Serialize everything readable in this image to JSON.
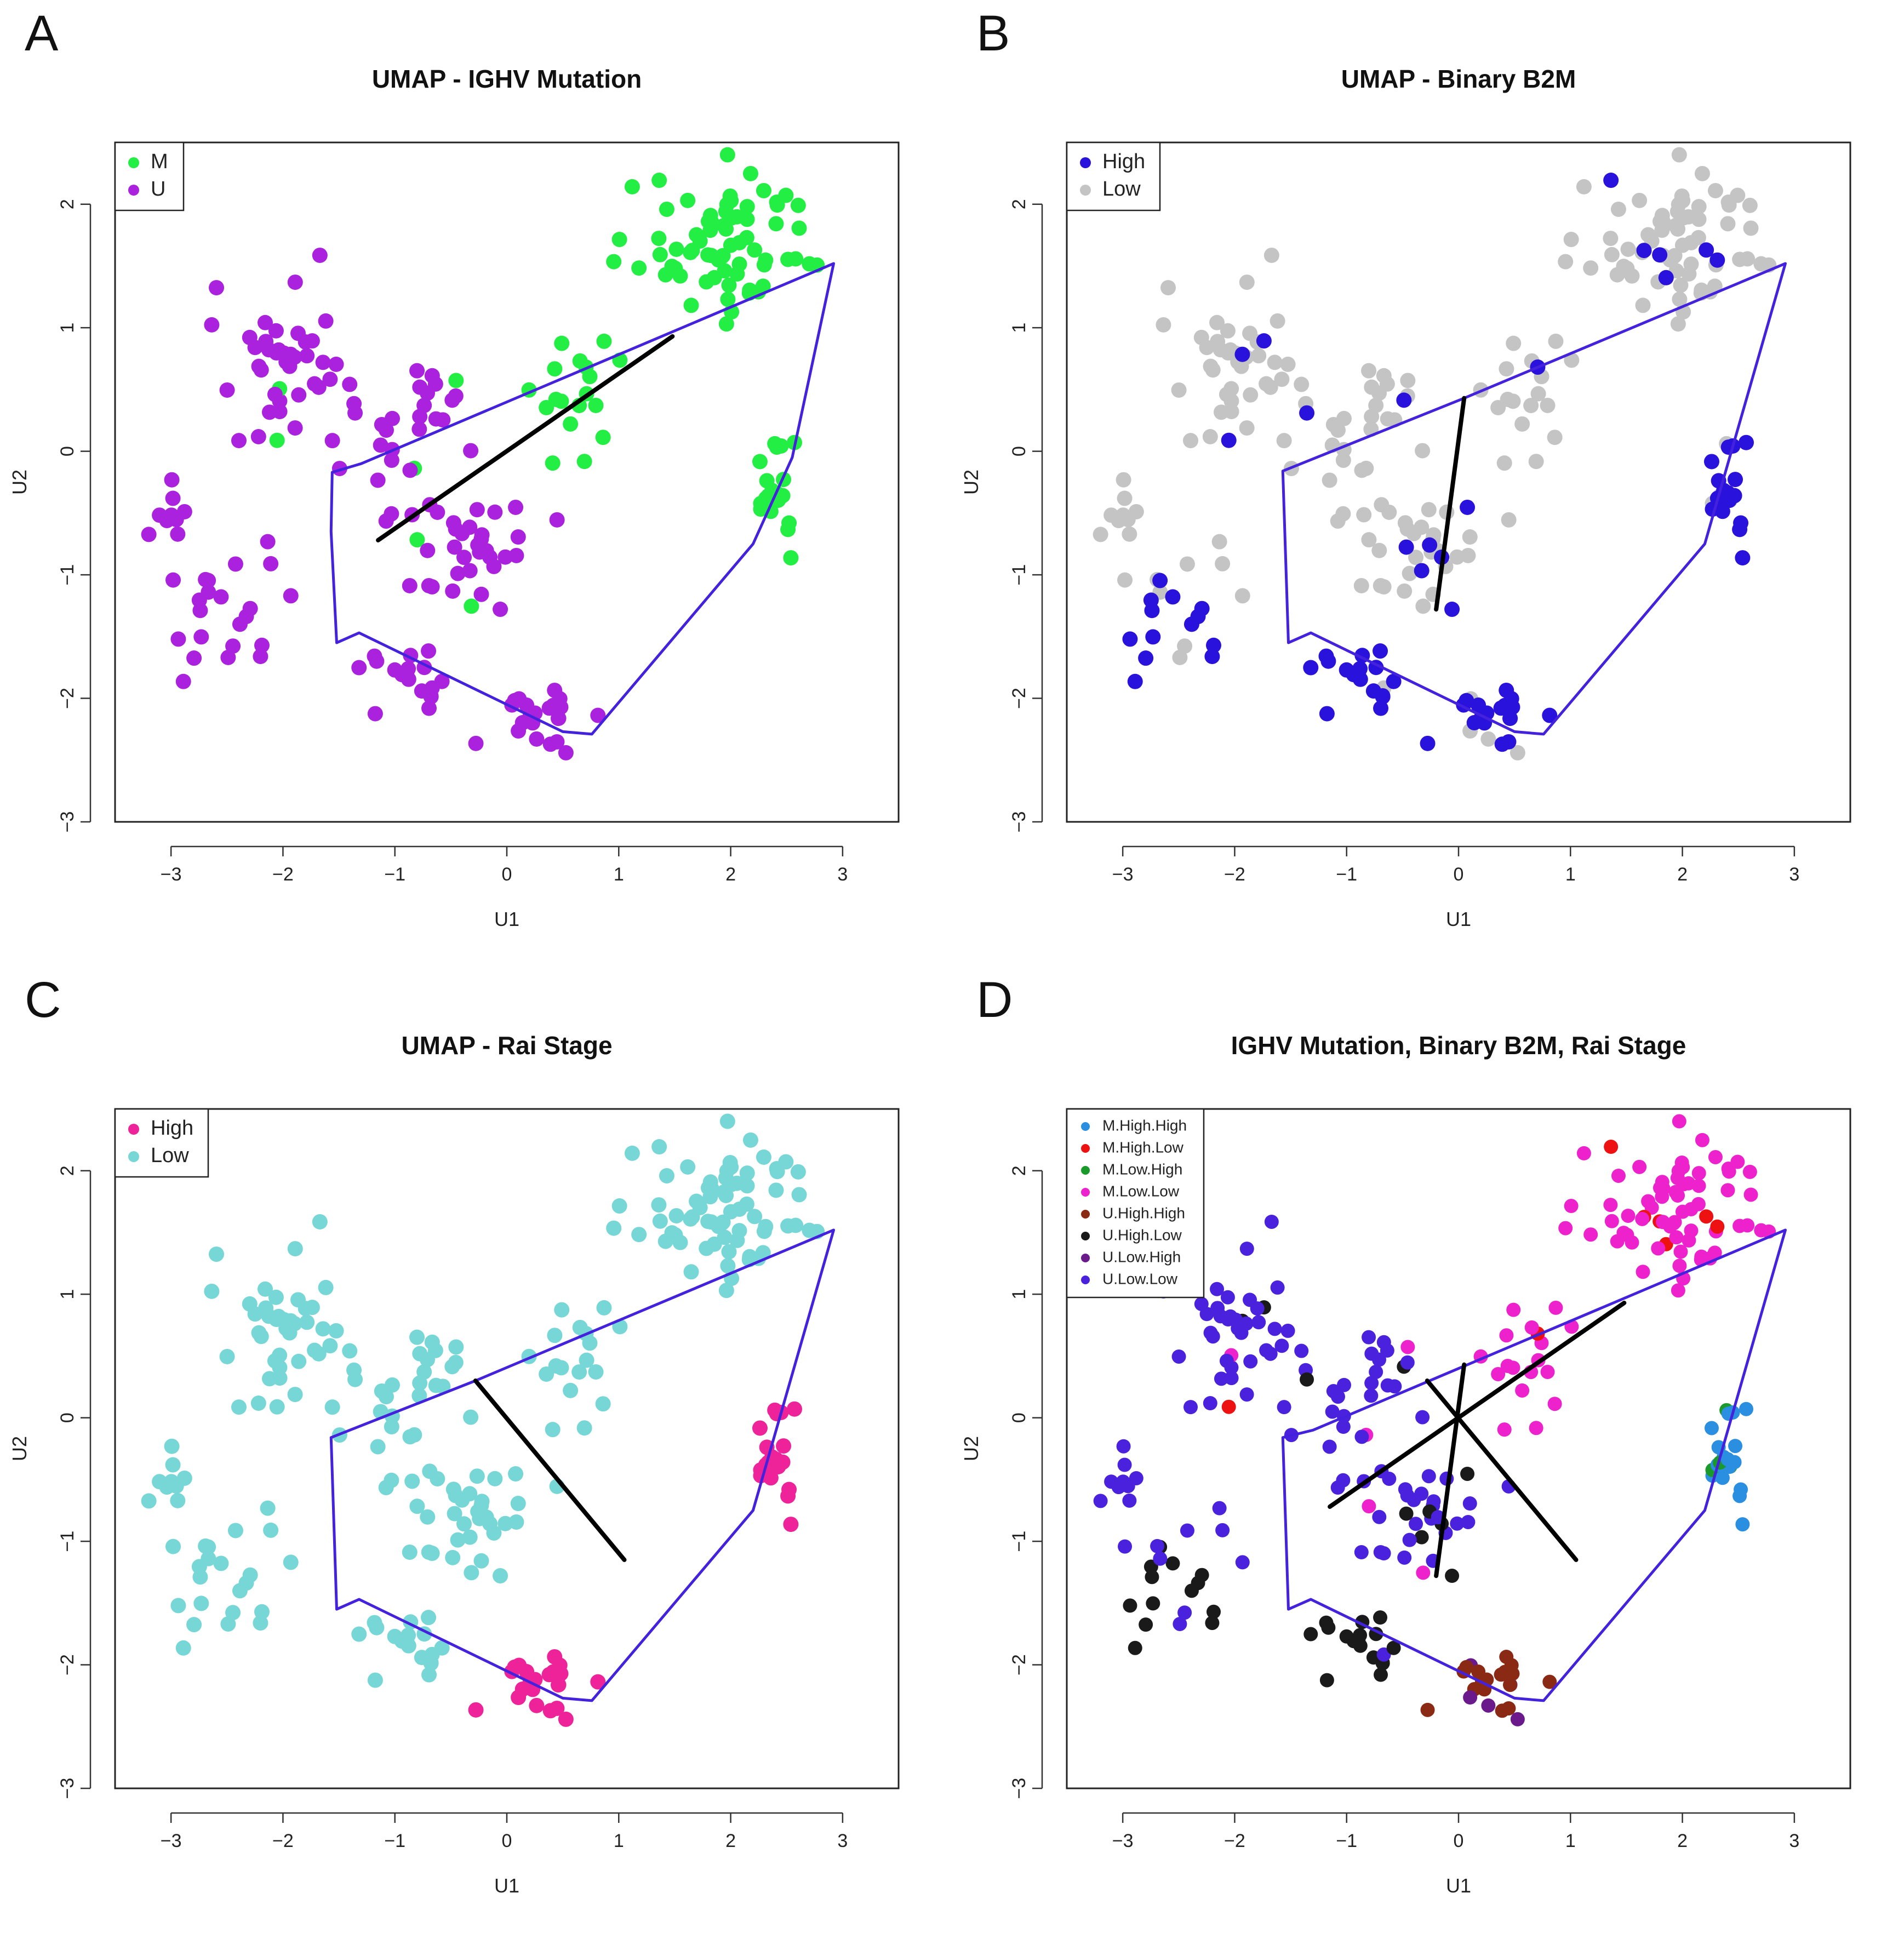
{
  "figure": {
    "panels": [
      "A",
      "B",
      "C",
      "D"
    ]
  },
  "colors": {
    "hull": "#4422dd",
    "arrow": "#000000",
    "frame": "#222222"
  },
  "chart_data": [
    {
      "panel": "A",
      "type": "scatter",
      "title": "UMAP - IGHV Mutation",
      "xlabel": "U1",
      "ylabel": "U2",
      "xlim": [
        -3.5,
        3.5
      ],
      "ylim": [
        -3.0,
        2.5
      ],
      "xticks": [
        -3,
        -2,
        -1,
        0,
        1,
        2,
        3
      ],
      "yticks": [
        -3,
        -2,
        -1,
        0,
        1,
        2
      ],
      "legend": {
        "position": "top-left",
        "entries": [
          {
            "label": "M",
            "color": "#22ee44"
          },
          {
            "label": "U",
            "color": "#aa22dd"
          }
        ]
      },
      "hull": [
        [
          2.92,
          1.52
        ],
        [
          2.55,
          -0.05
        ],
        [
          2.2,
          -0.75
        ],
        [
          0.76,
          -2.29
        ],
        [
          0.5,
          -2.27
        ],
        [
          -1.32,
          -1.47
        ],
        [
          -1.52,
          -1.55
        ],
        [
          -1.57,
          -0.65
        ],
        [
          -1.56,
          -0.17
        ],
        [
          -1.3,
          -0.1
        ]
      ],
      "segment": [
        [
          -1.15,
          -0.72
        ],
        [
          1.48,
          0.93
        ]
      ]
    },
    {
      "panel": "B",
      "type": "scatter",
      "title": "UMAP - Binary B2M",
      "xlabel": "U1",
      "ylabel": "U2",
      "xlim": [
        -3.5,
        3.5
      ],
      "ylim": [
        -3.0,
        2.5
      ],
      "xticks": [
        -3,
        -2,
        -1,
        0,
        1,
        2,
        3
      ],
      "yticks": [
        -3,
        -2,
        -1,
        0,
        1,
        2
      ],
      "legend": {
        "position": "top-left",
        "entries": [
          {
            "label": "High",
            "color": "#2a12dd"
          },
          {
            "label": "Low",
            "color": "#c4c4c4"
          }
        ]
      },
      "hull": [
        [
          2.92,
          1.52
        ],
        [
          2.2,
          -0.75
        ],
        [
          0.76,
          -2.29
        ],
        [
          0.5,
          -2.27
        ],
        [
          -1.32,
          -1.47
        ],
        [
          -1.52,
          -1.55
        ],
        [
          -1.57,
          -0.16
        ],
        [
          0.05,
          0.43
        ]
      ],
      "segment": [
        [
          0.05,
          0.43
        ],
        [
          -0.2,
          -1.28
        ]
      ]
    },
    {
      "panel": "C",
      "type": "scatter",
      "title": "UMAP - Rai Stage",
      "xlabel": "U1",
      "ylabel": "U2",
      "xlim": [
        -3.5,
        3.5
      ],
      "ylim": [
        -3.0,
        2.5
      ],
      "xticks": [
        -3,
        -2,
        -1,
        0,
        1,
        2,
        3
      ],
      "yticks": [
        -3,
        -2,
        -1,
        0,
        1,
        2
      ],
      "legend": {
        "position": "top-left",
        "entries": [
          {
            "label": "High",
            "color": "#ee2299"
          },
          {
            "label": "Low",
            "color": "#77d6d6"
          }
        ]
      },
      "hull": [
        [
          2.92,
          1.52
        ],
        [
          2.2,
          -0.75
        ],
        [
          0.76,
          -2.29
        ],
        [
          0.5,
          -2.27
        ],
        [
          -1.32,
          -1.47
        ],
        [
          -1.52,
          -1.55
        ],
        [
          -1.57,
          -0.16
        ],
        [
          -0.28,
          0.3
        ]
      ],
      "segment": [
        [
          -0.28,
          0.3
        ],
        [
          1.05,
          -1.15
        ]
      ]
    },
    {
      "panel": "D",
      "type": "scatter",
      "title": "IGHV Mutation, Binary B2M, Rai Stage",
      "xlabel": "U1",
      "ylabel": "U2",
      "xlim": [
        -3.5,
        3.5
      ],
      "ylim": [
        -3.0,
        2.5
      ],
      "xticks": [
        -3,
        -2,
        -1,
        0,
        1,
        2,
        3
      ],
      "yticks": [
        -3,
        -2,
        -1,
        0,
        1,
        2
      ],
      "legend": {
        "position": "top-left",
        "entries": [
          {
            "label": "M.High.High",
            "color": "#2a8fe0"
          },
          {
            "label": "M.High.Low",
            "color": "#ee1111"
          },
          {
            "label": "M.Low.High",
            "color": "#1a9a2a"
          },
          {
            "label": "M.Low.Low",
            "color": "#ee22cc"
          },
          {
            "label": "U.High.High",
            "color": "#8b2a14"
          },
          {
            "label": "U.High.Low",
            "color": "#1a1a1a"
          },
          {
            "label": "U.Low.High",
            "color": "#6a1a8a"
          },
          {
            "label": "U.Low.Low",
            "color": "#4a22dd"
          }
        ]
      },
      "hull": [
        [
          2.92,
          1.52
        ],
        [
          2.2,
          -0.75
        ],
        [
          0.76,
          -2.29
        ],
        [
          0.5,
          -2.27
        ],
        [
          -1.32,
          -1.47
        ],
        [
          -1.52,
          -1.55
        ],
        [
          -1.57,
          -0.16
        ],
        [
          -1.3,
          -0.1
        ]
      ],
      "segments": [
        [
          [
            -1.15,
            -0.72
          ],
          [
            1.48,
            0.93
          ]
        ],
        [
          [
            0.05,
            0.43
          ],
          [
            -0.2,
            -1.28
          ]
        ],
        [
          [
            -0.28,
            0.3
          ],
          [
            1.05,
            -1.15
          ]
        ]
      ]
    }
  ]
}
